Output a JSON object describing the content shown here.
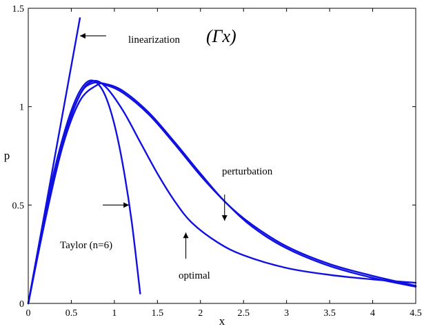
{
  "chart_data": {
    "type": "line",
    "title": "",
    "xlabel": "x",
    "ylabel": "p",
    "xlim": [
      0,
      4.5
    ],
    "ylim": [
      0,
      1.5
    ],
    "grid": false,
    "line_color": "#1010e0",
    "x_ticks": [
      0,
      0.5,
      1,
      1.5,
      2,
      2.5,
      3,
      3.5,
      4,
      4.5
    ],
    "y_ticks": [
      0,
      0.5,
      1,
      1.5
    ],
    "x_tick_labels": [
      "0",
      "0.5",
      "1",
      "1.5",
      "2",
      "2.5",
      "3",
      "3.5",
      "4",
      "4.5"
    ],
    "y_tick_labels": [
      "0",
      "0.5",
      "1",
      "1.5"
    ],
    "series": [
      {
        "points": [
          [
            0,
            0
          ],
          [
            0.6,
            1.45
          ]
        ]
      },
      {
        "points": [
          [
            0,
            0
          ],
          [
            0.1,
            0.24
          ],
          [
            0.2,
            0.47
          ],
          [
            0.3,
            0.67
          ],
          [
            0.4,
            0.84
          ],
          [
            0.5,
            0.98
          ],
          [
            0.6,
            1.08
          ],
          [
            0.7,
            1.13
          ],
          [
            0.8,
            1.12
          ],
          [
            0.9,
            1.05
          ],
          [
            1.0,
            0.91
          ],
          [
            1.1,
            0.7
          ],
          [
            1.2,
            0.42
          ],
          [
            1.3,
            0.05
          ]
        ]
      },
      {
        "points": [
          [
            0,
            0
          ],
          [
            0.2,
            0.45
          ],
          [
            0.4,
            0.82
          ],
          [
            0.6,
            1.06
          ],
          [
            0.75,
            1.13
          ],
          [
            0.9,
            1.1
          ],
          [
            1.1,
            0.98
          ],
          [
            1.3,
            0.82
          ],
          [
            1.5,
            0.66
          ],
          [
            1.7,
            0.52
          ],
          [
            1.9,
            0.41
          ],
          [
            2.2,
            0.31
          ],
          [
            2.5,
            0.245
          ],
          [
            3.0,
            0.18
          ],
          [
            3.5,
            0.145
          ],
          [
            4.0,
            0.122
          ],
          [
            4.5,
            0.105
          ]
        ]
      },
      {
        "points": [
          [
            0,
            0
          ],
          [
            0.2,
            0.43
          ],
          [
            0.4,
            0.8
          ],
          [
            0.6,
            1.03
          ],
          [
            0.8,
            1.11
          ],
          [
            0.9,
            1.115
          ],
          [
            1.1,
            1.08
          ],
          [
            1.4,
            0.97
          ],
          [
            1.7,
            0.82
          ],
          [
            2.0,
            0.66
          ],
          [
            2.3,
            0.51
          ],
          [
            2.6,
            0.4
          ],
          [
            3.0,
            0.29
          ],
          [
            3.5,
            0.2
          ],
          [
            4.0,
            0.14
          ],
          [
            4.5,
            0.09
          ]
        ]
      },
      {
        "points": [
          [
            0,
            0
          ],
          [
            0.2,
            0.44
          ],
          [
            0.4,
            0.82
          ],
          [
            0.6,
            1.06
          ],
          [
            0.75,
            1.12
          ],
          [
            0.9,
            1.11
          ],
          [
            1.1,
            1.07
          ],
          [
            1.4,
            0.96
          ],
          [
            1.7,
            0.81
          ],
          [
            2.0,
            0.65
          ],
          [
            2.3,
            0.51
          ],
          [
            2.6,
            0.39
          ],
          [
            3.0,
            0.28
          ],
          [
            3.5,
            0.19
          ],
          [
            4.0,
            0.13
          ],
          [
            4.5,
            0.085
          ]
        ]
      }
    ],
    "annotations": [
      {
        "text": "linearization",
        "arrow_to": [
          0.6,
          1.36
        ],
        "arrow_dir": "left"
      },
      {
        "text": "(Γx)",
        "arrow_to": null,
        "arrow_dir": null
      },
      {
        "text": "perturbation",
        "arrow_to": [
          2.28,
          0.42
        ],
        "arrow_dir": "down"
      },
      {
        "text": "Taylor (n=6)",
        "arrow_to": [
          1.17,
          0.5
        ],
        "arrow_dir": "right"
      },
      {
        "text": "optimal",
        "arrow_to": [
          1.83,
          0.36
        ],
        "arrow_dir": "up"
      }
    ]
  }
}
